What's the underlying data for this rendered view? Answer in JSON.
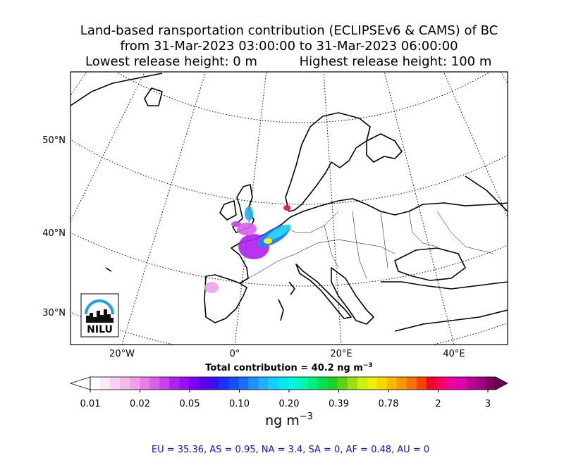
{
  "title": {
    "line1": "Land-based ransportation contribution (ECLIPSEv6 & CAMS) of BC",
    "line2": "from 31-Mar-2023 03:00:00 to 31-Mar-2023 06:00:00",
    "line3_left": "Lowest release height: 0 m",
    "line3_right": "Highest release height: 100 m"
  },
  "map": {
    "lat_labels": [
      "50°N",
      "40°N",
      "30°N"
    ],
    "lon_labels": [
      "20°W",
      "0°",
      "20°E",
      "40°E"
    ]
  },
  "logo": {
    "text": "NILU"
  },
  "total": {
    "label": "Total contribution = 40.2 ng m",
    "exponent": "−3"
  },
  "colorbar": {
    "under_color": "#ffffff",
    "over_color": "#6a0050",
    "colors": [
      "#ffffff",
      "#fde8f8",
      "#f9d2f2",
      "#f4b9ee",
      "#eea0ea",
      "#e580e8",
      "#d960ea",
      "#c840f0",
      "#b020f0",
      "#9810f0",
      "#7a00f0",
      "#5a00f0",
      "#3a10f0",
      "#1a30f8",
      "#1050f8",
      "#1870fa",
      "#2090fa",
      "#20b0fa",
      "#10d0f8",
      "#00e8f0",
      "#00f8e0",
      "#00f8b0",
      "#00f080",
      "#00e050",
      "#20d020",
      "#60d010",
      "#98e010",
      "#c8f010",
      "#f0f000",
      "#f8d800",
      "#f8b800",
      "#f89800",
      "#f87000",
      "#f84000",
      "#f80030",
      "#f80070",
      "#f000a0",
      "#e000b0",
      "#c00090",
      "#a00080",
      "#800060"
    ],
    "ticks": [
      "0.01",
      "0.02",
      "0.05",
      "0.10",
      "0.20",
      "0.39",
      "0.78",
      "2",
      "3"
    ],
    "unit": "ng m",
    "unit_exponent": "−3"
  },
  "footer": "EU = 35.36,  AS = 0.95,  NA = 3.4,  SA = 0,  AF = 0.48,  AU = 0"
}
